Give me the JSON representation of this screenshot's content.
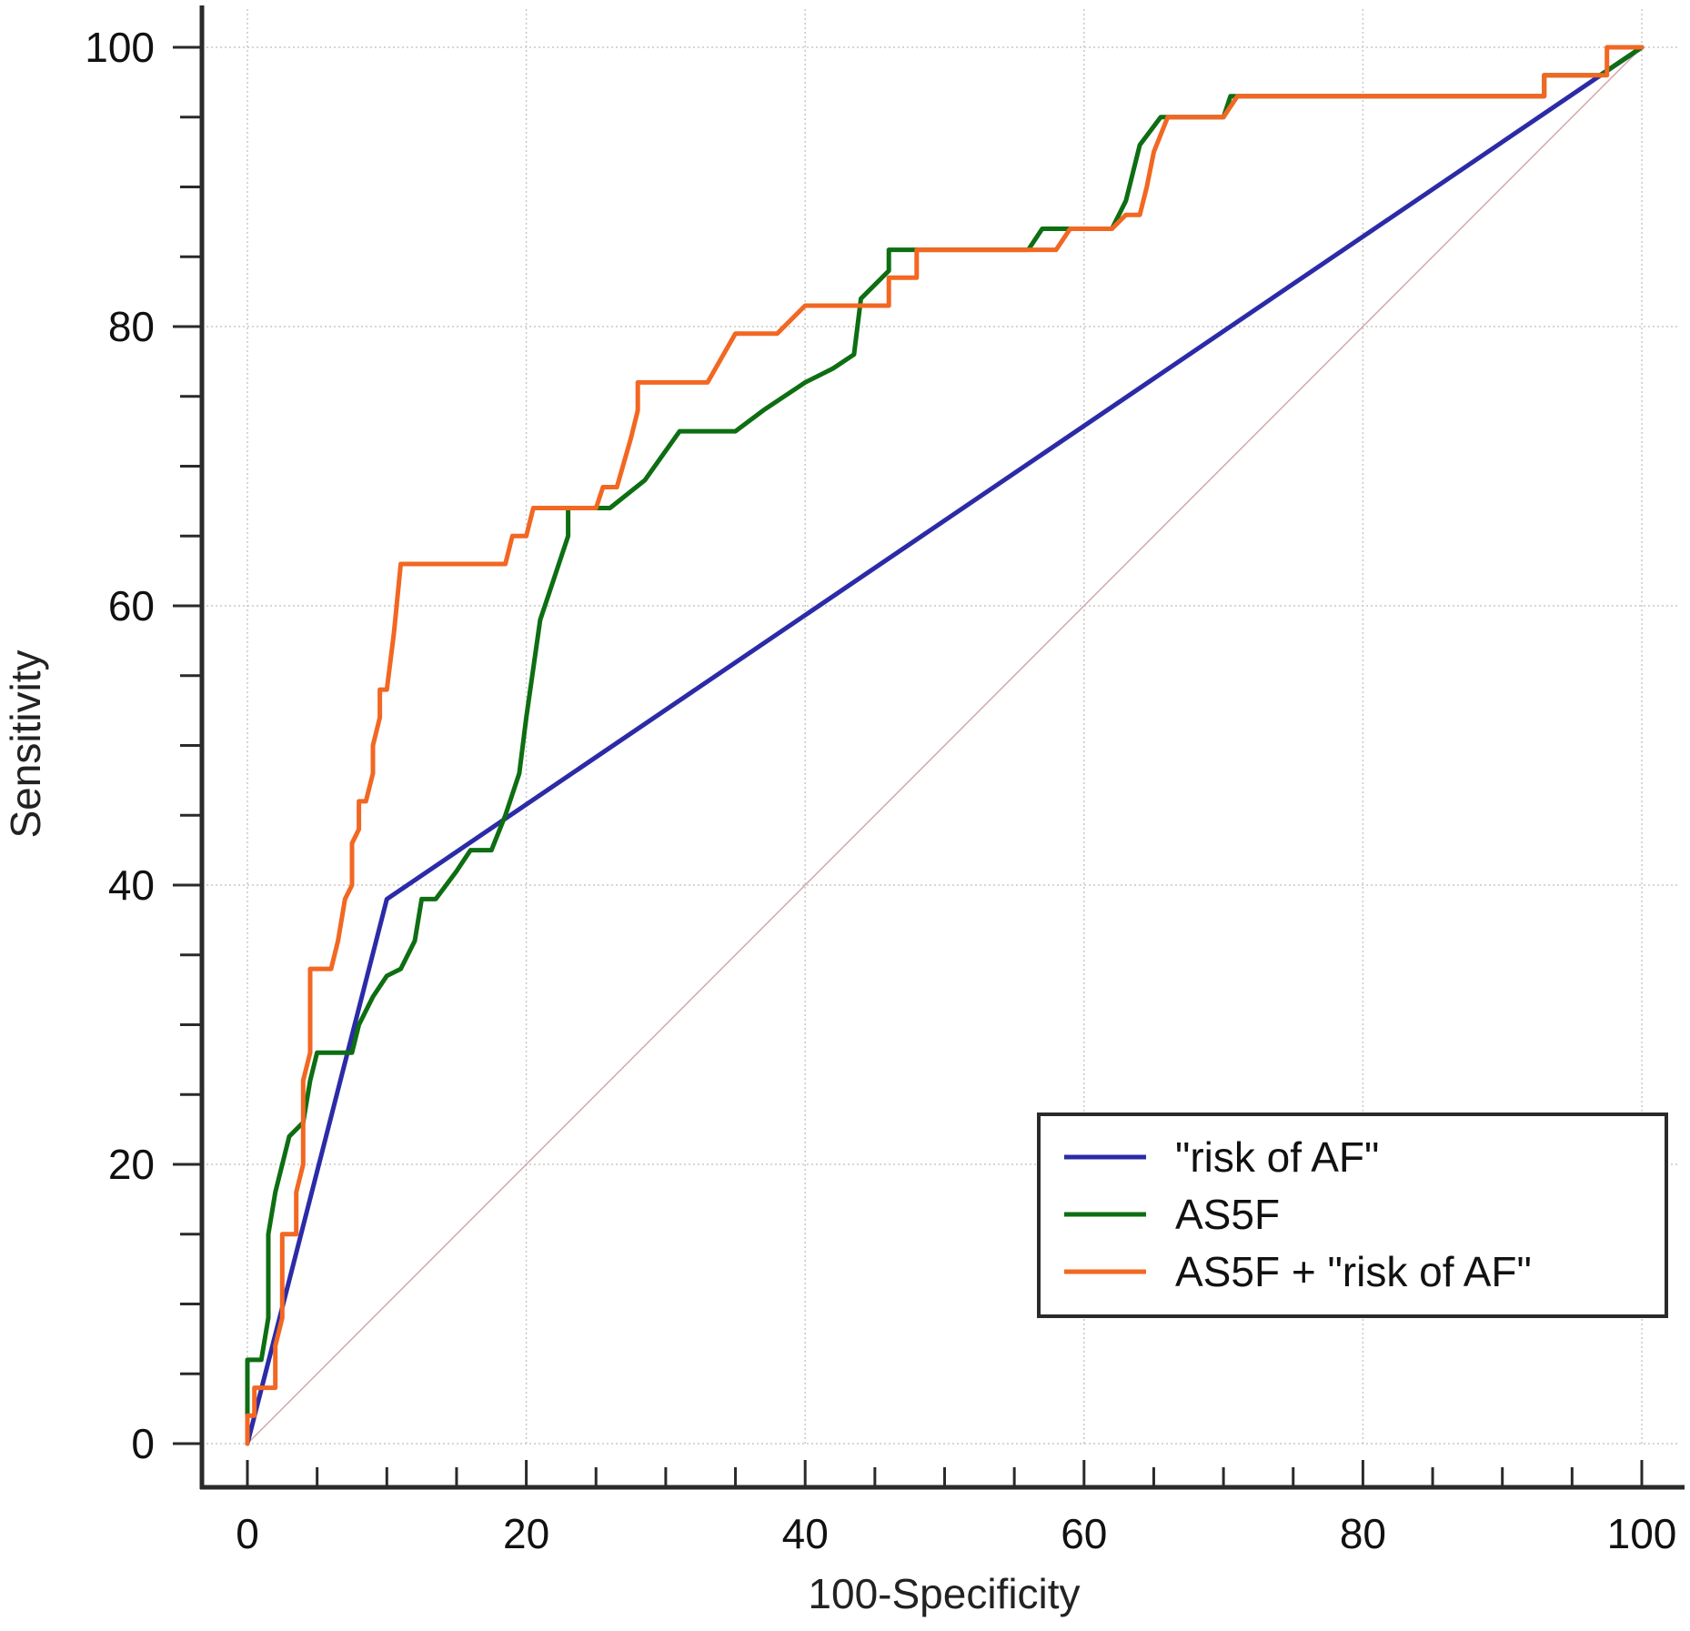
{
  "chart_data": {
    "type": "line",
    "title": "",
    "xlabel": "100-Specificity",
    "ylabel": "Sensitivity",
    "xlim": [
      0,
      100
    ],
    "ylim": [
      0,
      100
    ],
    "x_ticks": [
      "0",
      "20",
      "40",
      "60",
      "80",
      "100"
    ],
    "y_ticks": [
      "0",
      "20",
      "40",
      "60",
      "80",
      "100"
    ],
    "grid": true,
    "legend_position": "bottom-right",
    "reference_line": {
      "points": [
        [
          0,
          0
        ],
        [
          100,
          100
        ]
      ],
      "color": "#d4a8a8"
    },
    "series": [
      {
        "name": "\"risk of AF\"",
        "color": "#2b2ba8",
        "points": [
          [
            0,
            0
          ],
          [
            10,
            39
          ],
          [
            100,
            100
          ]
        ]
      },
      {
        "name": "AS5F",
        "color": "#0d6e12",
        "points": [
          [
            0,
            0
          ],
          [
            0,
            6
          ],
          [
            1,
            6
          ],
          [
            1.5,
            9
          ],
          [
            1.5,
            15
          ],
          [
            2,
            18
          ],
          [
            3,
            22
          ],
          [
            4,
            23
          ],
          [
            4.5,
            26
          ],
          [
            5,
            28
          ],
          [
            7.5,
            28
          ],
          [
            8,
            30
          ],
          [
            9,
            32
          ],
          [
            10,
            33.5
          ],
          [
            11,
            34
          ],
          [
            12,
            36
          ],
          [
            12.5,
            39
          ],
          [
            13.5,
            39
          ],
          [
            15,
            41
          ],
          [
            16,
            42.5
          ],
          [
            17.5,
            42.5
          ],
          [
            18.5,
            45
          ],
          [
            19.5,
            48
          ],
          [
            20,
            52
          ],
          [
            21,
            59
          ],
          [
            22,
            62
          ],
          [
            23,
            65
          ],
          [
            23,
            67
          ],
          [
            26,
            67
          ],
          [
            28.5,
            69
          ],
          [
            31,
            72.5
          ],
          [
            35,
            72.5
          ],
          [
            37,
            74
          ],
          [
            40,
            76
          ],
          [
            42,
            77
          ],
          [
            43.5,
            78
          ],
          [
            44,
            82
          ],
          [
            46,
            84
          ],
          [
            46,
            85.5
          ],
          [
            56,
            85.5
          ],
          [
            57,
            87
          ],
          [
            62,
            87
          ],
          [
            63,
            89
          ],
          [
            64,
            93
          ],
          [
            65.5,
            95
          ],
          [
            70,
            95
          ],
          [
            70.5,
            96.5
          ],
          [
            93,
            96.5
          ],
          [
            93,
            98
          ],
          [
            97,
            98
          ],
          [
            100,
            100
          ]
        ]
      },
      {
        "name": "AS5F + \"risk of AF\"",
        "color": "#f26722",
        "points": [
          [
            0,
            0
          ],
          [
            0,
            2
          ],
          [
            0.5,
            2
          ],
          [
            0.5,
            4
          ],
          [
            2,
            4
          ],
          [
            2,
            7
          ],
          [
            2.5,
            9
          ],
          [
            2.5,
            15
          ],
          [
            3.5,
            15
          ],
          [
            3.5,
            18
          ],
          [
            4,
            20
          ],
          [
            4,
            26
          ],
          [
            4.5,
            28
          ],
          [
            4.5,
            34
          ],
          [
            6,
            34
          ],
          [
            6.5,
            36
          ],
          [
            7,
            39
          ],
          [
            7.5,
            40
          ],
          [
            7.5,
            43
          ],
          [
            8,
            44
          ],
          [
            8,
            46
          ],
          [
            8.5,
            46
          ],
          [
            9,
            48
          ],
          [
            9,
            50
          ],
          [
            9.5,
            52
          ],
          [
            9.5,
            54
          ],
          [
            10,
            54
          ],
          [
            10.5,
            58
          ],
          [
            11,
            63
          ],
          [
            18.5,
            63
          ],
          [
            19,
            65
          ],
          [
            20,
            65
          ],
          [
            20.5,
            67
          ],
          [
            25,
            67
          ],
          [
            25.5,
            68.5
          ],
          [
            26.5,
            68.5
          ],
          [
            27.5,
            72
          ],
          [
            28,
            74
          ],
          [
            28,
            76
          ],
          [
            33,
            76
          ],
          [
            35,
            79.5
          ],
          [
            38,
            79.5
          ],
          [
            40,
            81.5
          ],
          [
            43,
            81.5
          ],
          [
            45,
            81.5
          ],
          [
            46,
            81.5
          ],
          [
            46,
            83.5
          ],
          [
            48,
            83.5
          ],
          [
            48,
            85.5
          ],
          [
            57,
            85.5
          ],
          [
            58,
            85.5
          ],
          [
            59,
            87
          ],
          [
            62,
            87
          ],
          [
            63,
            88
          ],
          [
            64,
            88
          ],
          [
            64.5,
            90
          ],
          [
            65,
            92.5
          ],
          [
            66,
            95
          ],
          [
            70,
            95
          ],
          [
            71,
            96.5
          ],
          [
            93,
            96.5
          ],
          [
            93,
            98
          ],
          [
            97.5,
            98
          ],
          [
            97.5,
            100
          ],
          [
            100,
            100
          ]
        ]
      }
    ]
  }
}
